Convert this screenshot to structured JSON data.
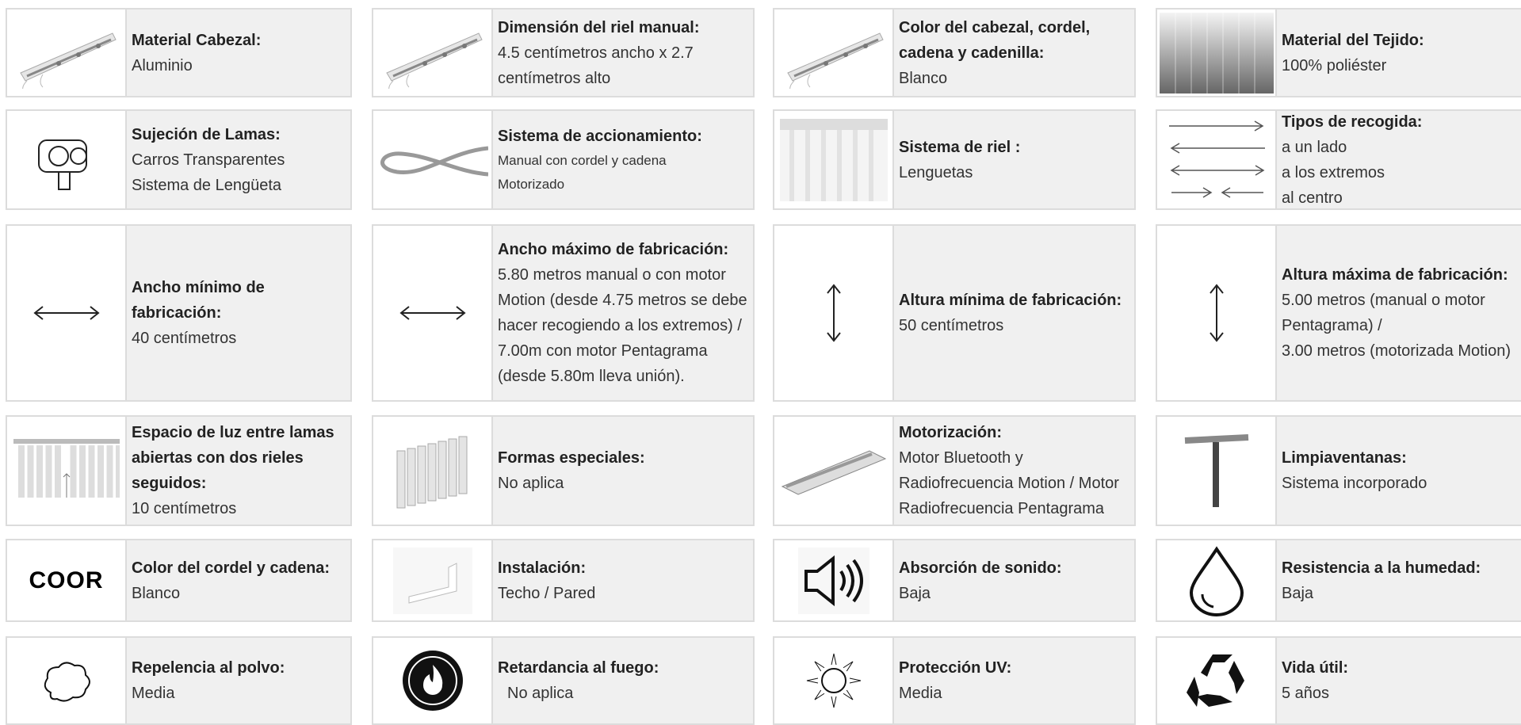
{
  "cells": [
    {
      "label": "Material Cabezal:",
      "lines": [
        "Aluminio"
      ]
    },
    {
      "label": "Dimensión del riel manual:",
      "lines": [
        "4.5 centímetros ancho x  2.7 centímetros alto"
      ]
    },
    {
      "label": "Color del cabezal, cordel, cadena y cadenilla:",
      "lines": [
        "Blanco"
      ]
    },
    {
      "label": "Material del Tejido:",
      "lines": [
        "100% poliéster"
      ]
    },
    {
      "label": "Sujeción de Lamas:",
      "lines": [
        "Carros Transparentes",
        "Sistema de Lengüeta"
      ]
    },
    {
      "label": "Sistema de accionamiento:",
      "lines": [
        "Manual con cordel y cadena",
        "Motorizado"
      ]
    },
    {
      "label": "Sistema de riel :",
      "lines": [
        "Lenguetas"
      ]
    },
    {
      "label": "Tipos de recogida:",
      "lines": [
        "a un lado",
        "a los extremos",
        "al centro"
      ]
    },
    {
      "label": "Ancho mínimo de fabricación:",
      "lines": [
        "40 centímetros"
      ]
    },
    {
      "label": "Ancho máximo de fabricación:",
      "lines": [
        "5.80 metros manual o con motor Motion (desde 4.75 metros se debe hacer recogiendo a los extremos) / 7.00m con motor Pentagrama (desde 5.80m lleva unión)."
      ]
    },
    {
      "label": "Altura mínima de fabricación:",
      "lines": [
        "50 centímetros"
      ]
    },
    {
      "label": "Altura máxima de fabricación:",
      "lines": [
        "5.00 metros (manual o motor Pentagrama) /",
        "3.00 metros (motorizada Motion)"
      ]
    },
    {
      "label": "Espacio de luz entre lamas abiertas con dos rieles seguidos:",
      "lines": [
        "10 centímetros"
      ]
    },
    {
      "label": "Formas especiales:",
      "lines": [
        "No aplica"
      ]
    },
    {
      "label": "Motorización:",
      "lines": [
        "Motor Bluetooth y Radiofrecuencia Motion / Motor Radiofrecuencia Pentagrama"
      ]
    },
    {
      "label": "Limpiaventanas:",
      "lines": [
        "Sistema incorporado"
      ]
    },
    {
      "label": "Color del cordel y cadena:",
      "lines": [
        "Blanco"
      ],
      "icon_text": "COOR"
    },
    {
      "label": "Instalación:",
      "lines": [
        "Techo / Pared"
      ]
    },
    {
      "label": "Absorción de sonido:",
      "lines": [
        "Baja"
      ]
    },
    {
      "label": "Resistencia a la humedad:",
      "lines": [
        "Baja"
      ]
    },
    {
      "label": "Repelencia al polvo:",
      "lines": [
        "Media"
      ]
    },
    {
      "label": "Retardancia al fuego:",
      "lines": [
        "No aplica"
      ]
    },
    {
      "label": "Protección UV:",
      "lines": [
        "Media"
      ]
    },
    {
      "label": "Vida útil:",
      "lines": [
        "5 años"
      ]
    }
  ]
}
